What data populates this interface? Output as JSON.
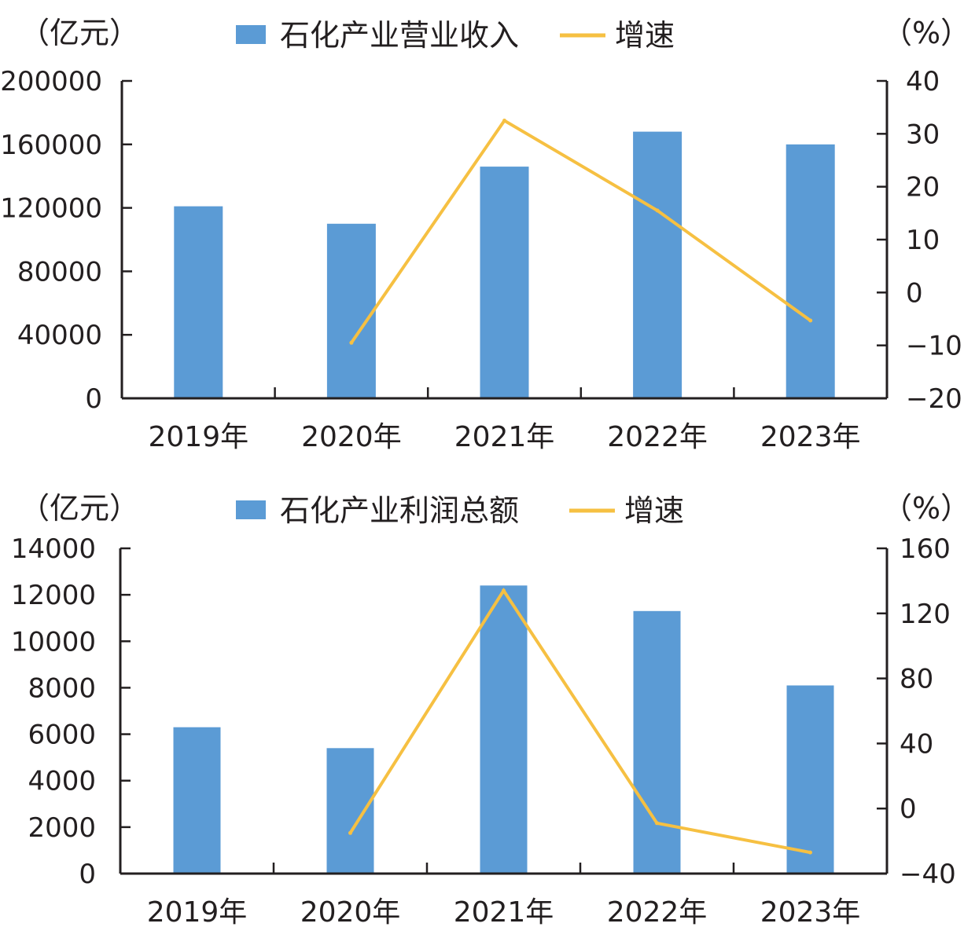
{
  "chart_data": [
    {
      "type": "bar",
      "categories": [
        "2019年",
        "2020年",
        "2021年",
        "2022年",
        "2023年"
      ],
      "series": [
        {
          "name": "石化产业营业收入",
          "type": "bar",
          "axis": "left",
          "values": [
            121000,
            110000,
            146000,
            168000,
            160000
          ]
        },
        {
          "name": "增速",
          "type": "line",
          "axis": "right",
          "values": [
            null,
            -9.5,
            32.5,
            15.5,
            -5.3
          ]
        }
      ],
      "left_unit": "（亿元）",
      "right_unit": "（%）",
      "ylim_left": [
        0,
        200000
      ],
      "yticks_left": [
        "0",
        "40000",
        "80000",
        "120000",
        "160000",
        "200000"
      ],
      "ylim_right": [
        -20,
        40
      ],
      "yticks_right": [
        "−20",
        "−10",
        "0",
        "10",
        "20",
        "30",
        "40"
      ],
      "legend": "top-center",
      "grid": false,
      "colors": {
        "bar": "#5b9bd5",
        "line": "#f6c042"
      }
    },
    {
      "type": "bar",
      "categories": [
        "2019年",
        "2020年",
        "2021年",
        "2022年",
        "2023年"
      ],
      "series": [
        {
          "name": "石化产业利润总额",
          "type": "bar",
          "axis": "left",
          "values": [
            6300,
            5400,
            12400,
            11300,
            8100
          ]
        },
        {
          "name": "增速",
          "type": "line",
          "axis": "right",
          "values": [
            null,
            -15,
            134,
            -9,
            -27
          ]
        }
      ],
      "left_unit": "（亿元）",
      "right_unit": "（%）",
      "ylim_left": [
        0,
        14000
      ],
      "yticks_left": [
        "0",
        "2000",
        "4000",
        "6000",
        "8000",
        "10000",
        "12000",
        "14000"
      ],
      "ylim_right": [
        -40,
        160
      ],
      "yticks_right": [
        "−40",
        "0",
        "40",
        "80",
        "120",
        "160"
      ],
      "legend": "top-center",
      "grid": false,
      "colors": {
        "bar": "#5b9bd5",
        "line": "#f6c042"
      }
    }
  ]
}
